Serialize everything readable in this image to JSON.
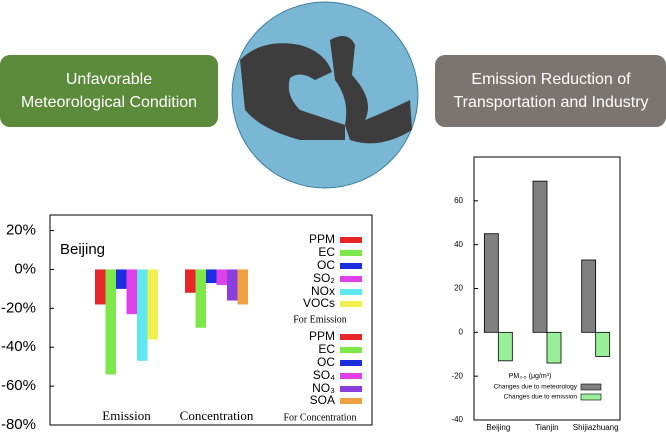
{
  "left_label": [
    "Unfavorable",
    "Meteorological Condition"
  ],
  "right_label": [
    "Emission Reduction of",
    "Transportation and Industry"
  ],
  "chart_data": [
    {
      "type": "bar",
      "title": "Beijing",
      "ylim": [
        -80,
        28
      ],
      "yticks": [
        {
          "value": 20,
          "label": "20%"
        },
        {
          "value": 0,
          "label": "0%"
        },
        {
          "value": -20,
          "label": "-20%"
        },
        {
          "value": -40,
          "label": "-40%"
        },
        {
          "value": -60,
          "label": "-60%"
        },
        {
          "value": -80,
          "label": "-80%"
        }
      ],
      "categories": [
        "Emission",
        "Concentration"
      ],
      "groups": [
        {
          "legend_title": "For Emission",
          "series": [
            {
              "name": "PPM",
              "color": "#e8262a",
              "value": -18
            },
            {
              "name": "EC",
              "color": "#7ee84a",
              "value": -54
            },
            {
              "name": "OC",
              "color": "#1a2ee0",
              "value": -10
            },
            {
              "name": "SO₂",
              "color": "#e040e8",
              "value": -23
            },
            {
              "name": "NOx",
              "color": "#60e8f0",
              "value": -47
            },
            {
              "name": "VOCs",
              "color": "#f2f050",
              "value": -36
            }
          ]
        },
        {
          "legend_title": "For Concentration",
          "series": [
            {
              "name": "PPM",
              "color": "#e8262a",
              "value": -12
            },
            {
              "name": "EC",
              "color": "#7ee84a",
              "value": -30
            },
            {
              "name": "OC",
              "color": "#1a2ee0",
              "value": -7
            },
            {
              "name": "SO₄",
              "color": "#e040e8",
              "value": -8
            },
            {
              "name": "NO₃",
              "color": "#8a3ee0",
              "value": -16
            },
            {
              "name": "SOA",
              "color": "#f0a040",
              "value": -18
            }
          ]
        }
      ]
    },
    {
      "type": "bar",
      "legend_title": "PM₂.₅ (μg/m³)",
      "categories": [
        "Beijing",
        "Tianjin",
        "Shijiazhuang"
      ],
      "ylim": [
        -40,
        80
      ],
      "yticks": [
        -40,
        -20,
        0,
        20,
        40,
        60
      ],
      "series": [
        {
          "name": "Changes due to meteorology",
          "color": "#808080",
          "values": [
            45,
            69,
            33
          ]
        },
        {
          "name": "Changes due to emission",
          "color": "#9af09a",
          "values": [
            -13,
            -14,
            -11
          ]
        }
      ]
    }
  ]
}
